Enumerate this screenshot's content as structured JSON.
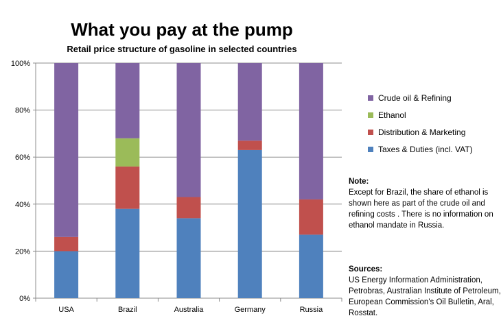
{
  "colors": {
    "crude": "#8064a2",
    "ethanol": "#9bbb59",
    "distribution": "#c0504d",
    "taxes": "#4f81bd"
  },
  "chart_data": {
    "type": "bar",
    "stacked": true,
    "title": "What you pay at the pump",
    "subtitle": "Retail price structure of gasoline in selected countries",
    "categories": [
      "USA",
      "Brazil",
      "Australia",
      "Germany",
      "Russia"
    ],
    "ylim": [
      0,
      100
    ],
    "yticks": [
      0,
      20,
      40,
      60,
      80,
      100
    ],
    "ytick_labels": [
      "0%",
      "20%",
      "40%",
      "60%",
      "80%",
      "100%"
    ],
    "grid": true,
    "legend_position": "right",
    "series": [
      {
        "name": "Taxes & Duties (incl. VAT)",
        "color_key": "taxes",
        "values": [
          20,
          38,
          34,
          63,
          27
        ]
      },
      {
        "name": "Distribution & Marketing",
        "color_key": "distribution",
        "values": [
          6,
          18,
          9,
          4,
          15
        ]
      },
      {
        "name": "Ethanol",
        "color_key": "ethanol",
        "values": [
          0,
          12,
          0,
          0,
          0
        ]
      },
      {
        "name": "Crude oil & Refining",
        "color_key": "crude",
        "values": [
          74,
          32,
          57,
          33,
          58
        ]
      }
    ],
    "legend_order": [
      3,
      2,
      1,
      0
    ]
  },
  "note": {
    "heading": "Note:",
    "text": "Except for Brazil, the share of ethanol is shown here as part of the crude oil and refining costs . There  is no information on ethanol mandate in Russia."
  },
  "sources": {
    "heading": "Sources:",
    "text": "US Energy Information Administration, Petrobras, Australian Institute of Petroleum, European Commission's Oil Bulletin,  Aral, Rosstat."
  }
}
